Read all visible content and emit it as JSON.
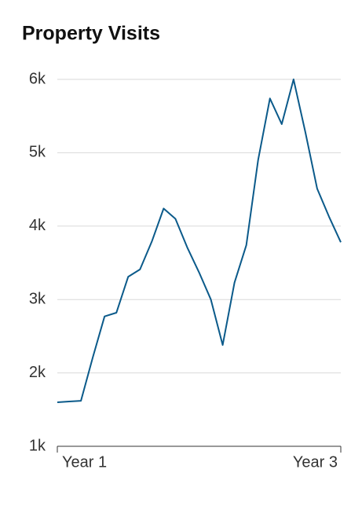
{
  "chart_data": {
    "type": "line",
    "title": "Property Visits",
    "categories": [
      "Year 1",
      null,
      null,
      null,
      null,
      null,
      null,
      null,
      null,
      null,
      null,
      null,
      null,
      null,
      null,
      null,
      null,
      null,
      null,
      null,
      null,
      null,
      null,
      null,
      "Year 3"
    ],
    "series": [
      {
        "name": "Property Visits",
        "color": "#0b5a8a",
        "values": [
          1600,
          1610,
          1620,
          2210,
          2770,
          2820,
          3310,
          3410,
          3790,
          4240,
          4100,
          3710,
          3370,
          3000,
          2380,
          3230,
          3740,
          4900,
          5740,
          5390,
          6000,
          5280,
          4510,
          4130,
          3780
        ]
      }
    ],
    "ylim": [
      1000,
      6000
    ],
    "yticks": [
      {
        "value": 1000,
        "label": "1k"
      },
      {
        "value": 2000,
        "label": "2k"
      },
      {
        "value": 3000,
        "label": "3k"
      },
      {
        "value": 4000,
        "label": "4k"
      },
      {
        "value": 5000,
        "label": "5k"
      },
      {
        "value": 6000,
        "label": "6k"
      }
    ],
    "grid": true
  }
}
